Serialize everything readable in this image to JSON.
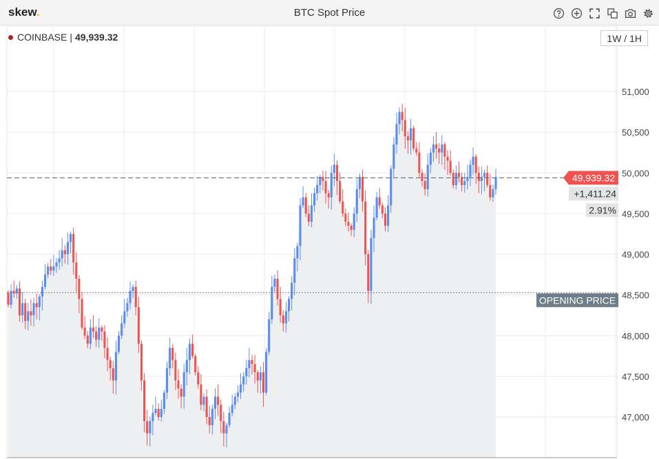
{
  "brand": {
    "name": "skew",
    "dot": "."
  },
  "header": {
    "title": "BTC Spot Price"
  },
  "toolbar": {
    "icons": [
      "help-icon",
      "add-icon",
      "fullscreen-icon",
      "duplicate-icon",
      "camera-icon",
      "settings-icon"
    ]
  },
  "source": {
    "exchange": "COINBASE",
    "separator": "|",
    "price": "49,939.32"
  },
  "timeframe": {
    "label": "1W / 1H"
  },
  "colors": {
    "up": "#5b8def",
    "down": "#ef5350",
    "price_tag": "#ef5350",
    "opening_tag": "#6e7e88",
    "grid": "#ebebeb",
    "area": "#ecedef"
  },
  "chart_data": {
    "type": "candlestick",
    "title": "BTC Spot Price",
    "ylim": [
      46600,
      51700
    ],
    "y_ticks": [
      47000,
      47500,
      48000,
      48500,
      49000,
      49500,
      50000,
      50500,
      51000
    ],
    "y_tick_labels": [
      "47,000",
      "47,500",
      "48,000",
      "48,500",
      "49,000",
      "49,500",
      "50,000",
      "50,500",
      "51,000"
    ],
    "grid": true,
    "current_price": 49939.32,
    "current_price_label": "49,939.32",
    "change_label": "+1,411.24",
    "change_pct_label": "2.91%",
    "opening_price": 48528.08,
    "opening_price_label": "OPENING PRICE",
    "series": [
      {
        "name": "COINBASE",
        "closes": [
          48380,
          48550,
          48520,
          48580,
          48250,
          48400,
          48180,
          48300,
          48250,
          48400,
          48350,
          48480,
          48600,
          48750,
          48850,
          48800,
          48850,
          48900,
          48950,
          49050,
          49000,
          49150,
          49250,
          48900,
          48700,
          48450,
          48100,
          48000,
          47900,
          48100,
          48050,
          47950,
          48100,
          48050,
          47850,
          47700,
          47600,
          47450,
          47800,
          48000,
          48150,
          48300,
          48400,
          48550,
          48600,
          48350,
          47900,
          47450,
          46950,
          46800,
          46950,
          47050,
          47100,
          47000,
          47100,
          47300,
          47600,
          47850,
          47700,
          47450,
          47350,
          47250,
          47550,
          47700,
          47900,
          47750,
          47550,
          47400,
          47150,
          47250,
          47000,
          46900,
          47100,
          47250,
          47150,
          46950,
          46800,
          46900,
          47050,
          47150,
          47250,
          47300,
          47400,
          47500,
          47600,
          47700,
          47650,
          47550,
          47450,
          47550,
          47300,
          47800,
          48200,
          48600,
          48700,
          48450,
          48250,
          48150,
          48300,
          48450,
          48650,
          48950,
          49100,
          49600,
          49700,
          49500,
          49400,
          49600,
          49750,
          49850,
          49950,
          49900,
          49750,
          49700,
          50000,
          50100,
          49900,
          49650,
          49500,
          49400,
          49350,
          49300,
          49500,
          49800,
          49950,
          49650,
          49000,
          48550,
          49200,
          49450,
          49700,
          49600,
          49500,
          49350,
          49600,
          50050,
          50350,
          50600,
          50750,
          50650,
          50450,
          50400,
          50550,
          50300,
          50250,
          50000,
          49900,
          49800,
          50100,
          50250,
          50350,
          50300,
          50250,
          50350,
          50200,
          50150,
          50000,
          49850,
          50000,
          49950,
          49850,
          49900,
          49950,
          50100,
          50200,
          50000,
          49900,
          49950,
          50000,
          49850,
          49700,
          49800,
          49950
        ]
      }
    ]
  }
}
